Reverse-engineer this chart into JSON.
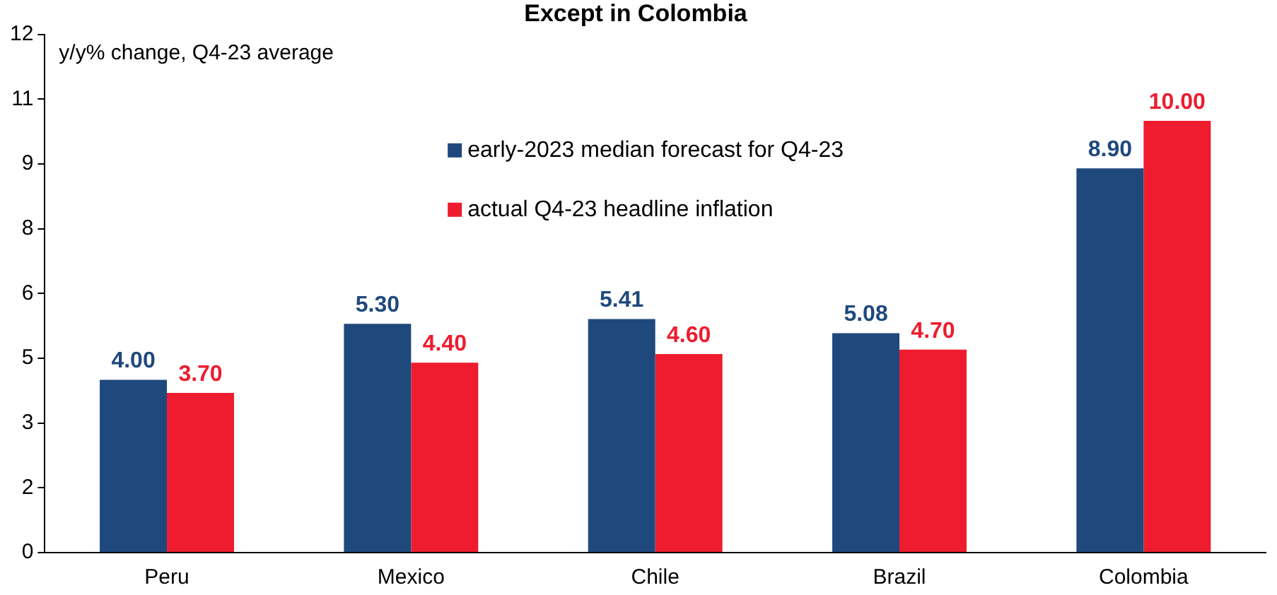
{
  "chart_data": {
    "type": "bar",
    "title": "Except in Colombia",
    "annotations": [
      "y/y% change, Q4-23 average"
    ],
    "categories": [
      "Peru",
      "Mexico",
      "Chile",
      "Brazil",
      "Colombia"
    ],
    "series": [
      {
        "name": "early-2023 median forecast for Q4-23",
        "color": "#1f497d",
        "values": [
          4.0,
          5.3,
          5.41,
          5.08,
          8.9
        ],
        "value_labels": [
          "4.00",
          "5.30",
          "5.41",
          "5.08",
          "8.90"
        ]
      },
      {
        "name": "actual Q4-23 headline inflation",
        "color": "#ee1c2e",
        "values": [
          3.7,
          4.4,
          4.6,
          4.7,
          10.0
        ],
        "value_labels": [
          "3.70",
          "4.40",
          "4.60",
          "4.70",
          "10.00"
        ]
      }
    ],
    "ylim": [
      0,
      12
    ],
    "yticks": [
      0,
      {
        "value": 1.5,
        "label": "2"
      },
      3,
      {
        "value": 4.5,
        "label": "5"
      },
      6,
      {
        "value": 7.5,
        "label": "8"
      },
      9,
      {
        "value": 10.5,
        "label": "11"
      },
      12
    ],
    "grid": false,
    "legend": "top"
  }
}
